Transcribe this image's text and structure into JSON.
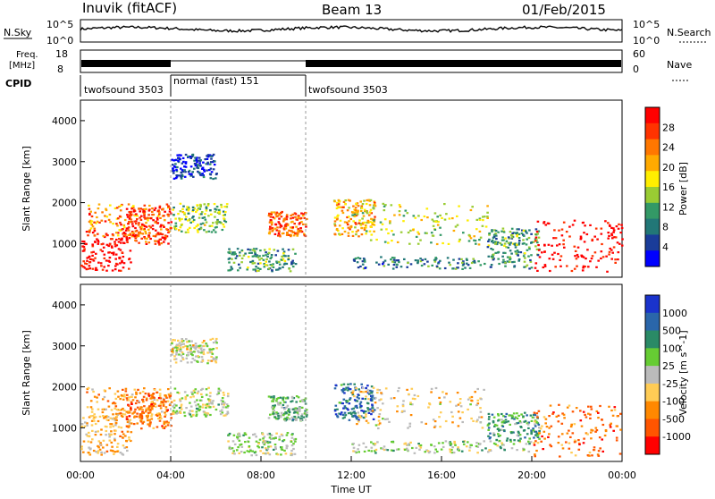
{
  "header": {
    "station": "Inuvik (fitACF)",
    "beam": "Beam 13",
    "date": "01/Feb/2015"
  },
  "top_panels": {
    "nsky_label": "N.Sky",
    "nsky_ticks": [
      "10^5",
      "10^0"
    ],
    "nsearch_label": "N.Search",
    "freq_label_1": "Freq.",
    "freq_label_2": "[MHz]",
    "freq_ticks": [
      "18",
      "8"
    ],
    "nave_label": "Nave",
    "nave_ticks": [
      "60",
      "0"
    ],
    "cpid_label": "CPID",
    "cpid_segments": [
      {
        "label": "twofsound 3503",
        "start_h": 0,
        "end_h": 4
      },
      {
        "label": "normal (fast) 151",
        "start_h": 4,
        "end_h": 10
      },
      {
        "label": "twofsound 3503",
        "start_h": 10,
        "end_h": 24
      }
    ]
  },
  "panels": {
    "power": {
      "ylabel": "Slant Range [km]",
      "yticks": [
        "4000",
        "3000",
        "2000",
        "1000"
      ],
      "cbar_label": "Power [dB]",
      "cbar_ticks": [
        "28",
        "24",
        "20",
        "16",
        "12",
        "8",
        "4"
      ],
      "cbar_colors": [
        "#ff0000",
        "#ff3300",
        "#ff7700",
        "#ffaa00",
        "#ffee00",
        "#99cc33",
        "#339966",
        "#227777",
        "#1a3c99",
        "#0000ff"
      ]
    },
    "velocity": {
      "ylabel": "Slant Range [km]",
      "yticks": [
        "4000",
        "3000",
        "2000",
        "1000"
      ],
      "cbar_label": "Velocity [m s^-1]",
      "cbar_ticks": [
        "1000",
        "500",
        "100",
        "25",
        "-25",
        "-100",
        "-500",
        "-1000"
      ],
      "cbar_colors": [
        "#1a33cc",
        "#2a66aa",
        "#2a8a66",
        "#66cc33",
        "#bbbbbb",
        "#ffcc55",
        "#ff8800",
        "#ff5500",
        "#ff0000"
      ]
    }
  },
  "x_axis": {
    "label": "Time UT",
    "ticks": [
      "00:00",
      "04:00",
      "08:00",
      "12:00",
      "16:00",
      "20:00",
      "00:00"
    ]
  },
  "chart_data": {
    "type": "heatmap",
    "title": "Inuvik (fitACF) Beam 13 01/Feb/2015",
    "xlabel": "Time UT",
    "ylabel": "Slant Range [km]",
    "xlim_hours": [
      0,
      24
    ],
    "ylim_km": [
      180,
      4500
    ],
    "x_ticks": [
      "00:00",
      "04:00",
      "08:00",
      "12:00",
      "16:00",
      "20:00",
      "00:00"
    ],
    "y_ticks": [
      1000,
      2000,
      3000,
      4000
    ],
    "power_scale_dB": [
      4,
      8,
      12,
      16,
      20,
      24,
      28
    ],
    "velocity_scale_ms": [
      -1000,
      -500,
      -100,
      -25,
      25,
      100,
      500,
      1000
    ],
    "cpid_changes_h": [
      4,
      10
    ],
    "scatter_regions": [
      {
        "t0": 0.0,
        "t1": 2.2,
        "r0": 350,
        "r1": 1400,
        "power_dB": 29,
        "velocity_ms": -300
      },
      {
        "t0": 0.2,
        "t1": 4.0,
        "r0": 1200,
        "r1": 2000,
        "power_dB": 22,
        "velocity_ms": -400
      },
      {
        "t0": 2.0,
        "t1": 4.0,
        "r0": 1000,
        "r1": 1900,
        "power_dB": 26,
        "velocity_ms": -600
      },
      {
        "t0": 4.0,
        "t1": 6.5,
        "r0": 1300,
        "r1": 2000,
        "power_dB": 14,
        "velocity_ms": 50
      },
      {
        "t0": 4.0,
        "t1": 6.0,
        "r0": 2600,
        "r1": 3200,
        "power_dB": 6,
        "velocity_ms": -50
      },
      {
        "t0": 6.5,
        "t1": 9.5,
        "r0": 350,
        "r1": 900,
        "power_dB": 12,
        "velocity_ms": 100
      },
      {
        "t0": 8.3,
        "t1": 10.0,
        "r0": 1200,
        "r1": 1800,
        "power_dB": 24,
        "velocity_ms": 300
      },
      {
        "t0": 11.2,
        "t1": 13.0,
        "r0": 1200,
        "r1": 2100,
        "power_dB": 20,
        "velocity_ms": 700
      },
      {
        "t0": 12.0,
        "t1": 18.0,
        "r0": 1000,
        "r1": 2000,
        "power_dB": 16,
        "velocity_ms": -200
      },
      {
        "t0": 12.0,
        "t1": 20.0,
        "r0": 400,
        "r1": 700,
        "power_dB": 10,
        "velocity_ms": 100
      },
      {
        "t0": 18.0,
        "t1": 20.3,
        "r0": 700,
        "r1": 1400,
        "power_dB": 12,
        "velocity_ms": 400
      },
      {
        "t0": 20.0,
        "t1": 24.0,
        "r0": 300,
        "r1": 1600,
        "power_dB": 29,
        "velocity_ms": -600
      }
    ]
  }
}
